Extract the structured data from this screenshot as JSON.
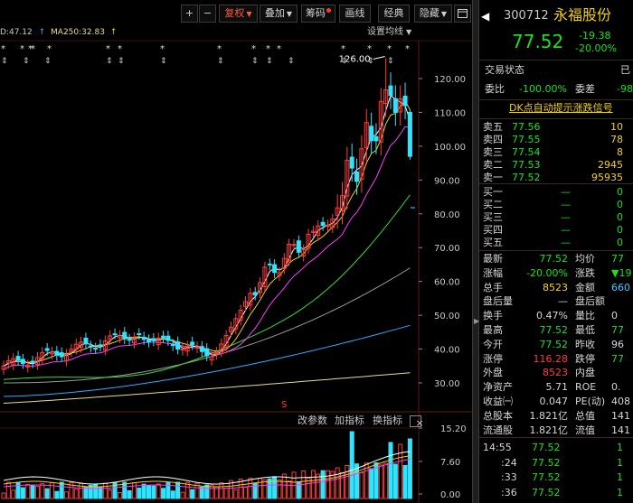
{
  "toolbar": {
    "plus": "+",
    "minus": "−",
    "fuquan": "复权",
    "diejia": "叠加",
    "chouma": "筹码",
    "huaxian": "画线",
    "jingdian": "经典",
    "yincang": "隐藏",
    "window_icon": "window-icon"
  },
  "ma": {
    "prev_value": "D:47.12",
    "ma250_label": "MA250:32.83",
    "settings": "设置均线"
  },
  "chart": {
    "price_labels": [
      "120.00",
      "110.00",
      "100.00",
      "90.00",
      "80.00",
      "70.00",
      "60.00",
      "50.00",
      "40.00",
      "30.00"
    ],
    "high_annotation": "126.00",
    "vol_labels": [
      "15.20",
      "7.60",
      "0.00"
    ],
    "event_marker": "S",
    "colors": {
      "up": "#ff3c3c",
      "down": "#2fe4ff",
      "ma5": "#ffffff",
      "ma10": "#f4d200",
      "ma20": "#ff3cff",
      "ma30": "#33dd33",
      "ma60": "#999999",
      "ma120": "#33aaff",
      "ma250": "#eadb8a"
    }
  },
  "indicator_bar": {
    "params": "改参数",
    "add": "加指标",
    "switch": "换指标",
    "close": "×"
  },
  "stock": {
    "code": "300712",
    "name": "永福股份",
    "price": "77.52",
    "change": "-19.38",
    "change_pct": "-20.00%",
    "status_label": "交易状态",
    "status_value": "已",
    "weibi_label": "委比",
    "weibi_value": "-100.00%",
    "weicha_label": "委差",
    "weicha_value": "-98",
    "dk_link": "DK点自动提示涨跌信号"
  },
  "order_book": {
    "sells": [
      {
        "label": "卖五",
        "price": "77.56",
        "vol": "10"
      },
      {
        "label": "卖四",
        "price": "77.55",
        "vol": "78"
      },
      {
        "label": "卖三",
        "price": "77.54",
        "vol": "8"
      },
      {
        "label": "卖二",
        "price": "77.53",
        "vol": "2945"
      },
      {
        "label": "卖一",
        "price": "77.52",
        "vol": "95935"
      }
    ],
    "buys": [
      {
        "label": "买一",
        "price": "—",
        "vol": "0"
      },
      {
        "label": "买二",
        "price": "—",
        "vol": "0"
      },
      {
        "label": "买三",
        "price": "—",
        "vol": "0"
      },
      {
        "label": "买四",
        "price": "—",
        "vol": "0"
      },
      {
        "label": "买五",
        "price": "—",
        "vol": "0"
      }
    ]
  },
  "stats": [
    {
      "l1": "最新",
      "v1": "77.52",
      "c1": "green",
      "l2": "均价",
      "v2": "77",
      "c2": "green"
    },
    {
      "l1": "涨幅",
      "v1": "-20.00%",
      "c1": "green",
      "l2": "涨跌",
      "v2": "▼19",
      "c2": "green"
    },
    {
      "l1": "总手",
      "v1": "8523",
      "c1": "yellow",
      "l2": "金额",
      "v2": "660",
      "c2": "cyan"
    },
    {
      "l1": "盘后量",
      "v1": "—",
      "c1": "lbl",
      "l2": "盘后额",
      "v2": "",
      "c2": "lbl"
    },
    {
      "l1": "换手",
      "v1": "0.47%",
      "c1": "lbl",
      "l2": "量比",
      "v2": "0",
      "c2": "lbl"
    },
    {
      "l1": "最高",
      "v1": "77.52",
      "c1": "green",
      "l2": "最低",
      "v2": "77",
      "c2": "green"
    },
    {
      "l1": "今开",
      "v1": "77.52",
      "c1": "green",
      "l2": "昨收",
      "v2": "96",
      "c2": "lbl"
    },
    {
      "l1": "涨停",
      "v1": "116.28",
      "c1": "red",
      "l2": "跌停",
      "v2": "77",
      "c2": "green"
    },
    {
      "l1": "外盘",
      "v1": "8523",
      "c1": "red",
      "l2": "内盘",
      "v2": "",
      "c2": "green"
    },
    {
      "l1": "净资产",
      "v1": "5.71",
      "c1": "lbl",
      "l2": "ROE",
      "v2": "0.",
      "c2": "lbl"
    },
    {
      "l1": "收益㈠",
      "v1": "0.047",
      "c1": "lbl",
      "l2": "PE(动)",
      "v2": "408",
      "c2": "lbl"
    },
    {
      "l1": "总股本",
      "v1": "1.821亿",
      "c1": "lbl",
      "l2": "总值",
      "v2": "141",
      "c2": "lbl"
    },
    {
      "l1": "流通股",
      "v1": "1.821亿",
      "c1": "lbl",
      "l2": "流值",
      "v2": "141",
      "c2": "lbl"
    }
  ],
  "trades": [
    {
      "time": "14:55",
      "price": "77.52",
      "vol": "1"
    },
    {
      "time": ":24",
      "price": "77.52",
      "vol": "1"
    },
    {
      "time": ":33",
      "price": "77.52",
      "vol": "1"
    },
    {
      "time": ":36",
      "price": "77.52",
      "vol": "1"
    }
  ]
}
